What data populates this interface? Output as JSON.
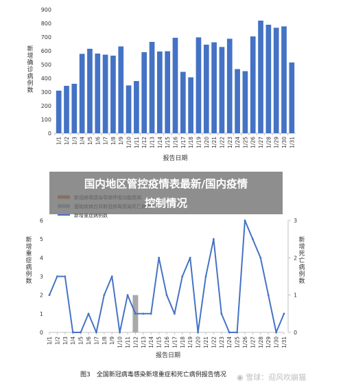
{
  "banner": {
    "line1": "国内地区管控疫情表最新/国内疫情",
    "line2": "控制情况"
  },
  "caption": "图3　全国新冠病毒感染新增重症和死亡病例报告情况",
  "watermark": "◉ 雪球：迎风吹崩猫",
  "colors": {
    "bar": "#4472c4",
    "line": "#4472c4",
    "gray": "#a9a9a9",
    "orange": "#e07b39",
    "axis": "#bfbfbf"
  },
  "chart_data": [
    {
      "type": "bar",
      "title": "",
      "xlabel": "报告日期",
      "ylabel": "新增确诊病例数",
      "ylim": [
        0,
        900
      ],
      "yticks": [
        0,
        100,
        200,
        300,
        400,
        500,
        600,
        700,
        800,
        900
      ],
      "grid": false,
      "categories": [
        "1/1",
        "1/2",
        "1/3",
        "1/4",
        "1/5",
        "1/6",
        "1/7",
        "1/8",
        "1/9",
        "1/10",
        "1/11",
        "1/12",
        "1/13",
        "1/14",
        "1/15",
        "1/16",
        "1/17",
        "1/18",
        "1/19",
        "1/20",
        "1/21",
        "1/22",
        "1/23",
        "1/24",
        "1/25",
        "1/26",
        "1/27",
        "1/28",
        "1/29",
        "1/30",
        "1/31"
      ],
      "series": [
        {
          "values": [
            310,
            345,
            360,
            578,
            615,
            580,
            572,
            565,
            632,
            348,
            380,
            590,
            665,
            595,
            597,
            695,
            447,
            407,
            698,
            645,
            662,
            628,
            688,
            467,
            452,
            705,
            820,
            790,
            768,
            778,
            515
          ]
        }
      ]
    },
    {
      "type": "bar+line",
      "title": "",
      "xlabel": "报告日期",
      "ylabel_left": "新增重症病例数",
      "ylabel_right": "新增死亡病例数",
      "ylim_left": [
        0,
        6
      ],
      "ylim_right": [
        0,
        3
      ],
      "yticks_left": [
        0,
        1,
        2,
        3,
        4,
        5,
        6
      ],
      "yticks_right": [
        0,
        1,
        2,
        3
      ],
      "legend_position": "top-left",
      "categories": [
        "1/1",
        "1/2",
        "1/3",
        "1/4",
        "1/5",
        "1/6",
        "1/7",
        "1/8",
        "1/9",
        "1/10",
        "1/11",
        "1/12",
        "1/13",
        "1/14",
        "1/15",
        "1/16",
        "1/17",
        "1/18",
        "1/19",
        "1/20",
        "1/21",
        "1/22",
        "1/23",
        "1/24",
        "1/25",
        "1/26",
        "1/27",
        "1/28",
        "1/29",
        "1/30",
        "1/31"
      ],
      "series": [
        {
          "name": "新冠病毒感染导致呼吸功能衰竭",
          "kind": "bar",
          "axis": "right",
          "color": "#e07b39",
          "values": [
            0,
            0,
            0,
            0,
            0,
            0,
            0,
            0,
            0,
            0,
            0,
            0,
            0,
            0,
            0,
            0,
            0,
            0,
            0,
            0,
            0,
            0,
            0,
            0,
            0,
            0,
            0,
            0,
            0,
            0,
            0
          ]
        },
        {
          "name": "基础疾病合并新冠病毒感染死亡病例",
          "kind": "bar",
          "axis": "right",
          "color": "#a9a9a9",
          "values": [
            0,
            0,
            0,
            0,
            0,
            0,
            0,
            0,
            0,
            0,
            0,
            1,
            0,
            0,
            0,
            0,
            0,
            0,
            0,
            0,
            0,
            0,
            0,
            0,
            0,
            0,
            0,
            0,
            0,
            0,
            0
          ]
        },
        {
          "name": "新增重症病例数",
          "kind": "line",
          "axis": "left",
          "color": "#4472c4",
          "values": [
            2,
            3,
            3,
            0,
            0,
            1,
            0,
            2,
            3,
            0,
            2,
            1,
            1,
            1,
            4,
            2,
            1,
            3,
            4,
            0,
            3,
            5,
            1,
            0,
            0,
            6,
            5,
            4,
            2,
            0,
            1
          ]
        }
      ]
    }
  ]
}
